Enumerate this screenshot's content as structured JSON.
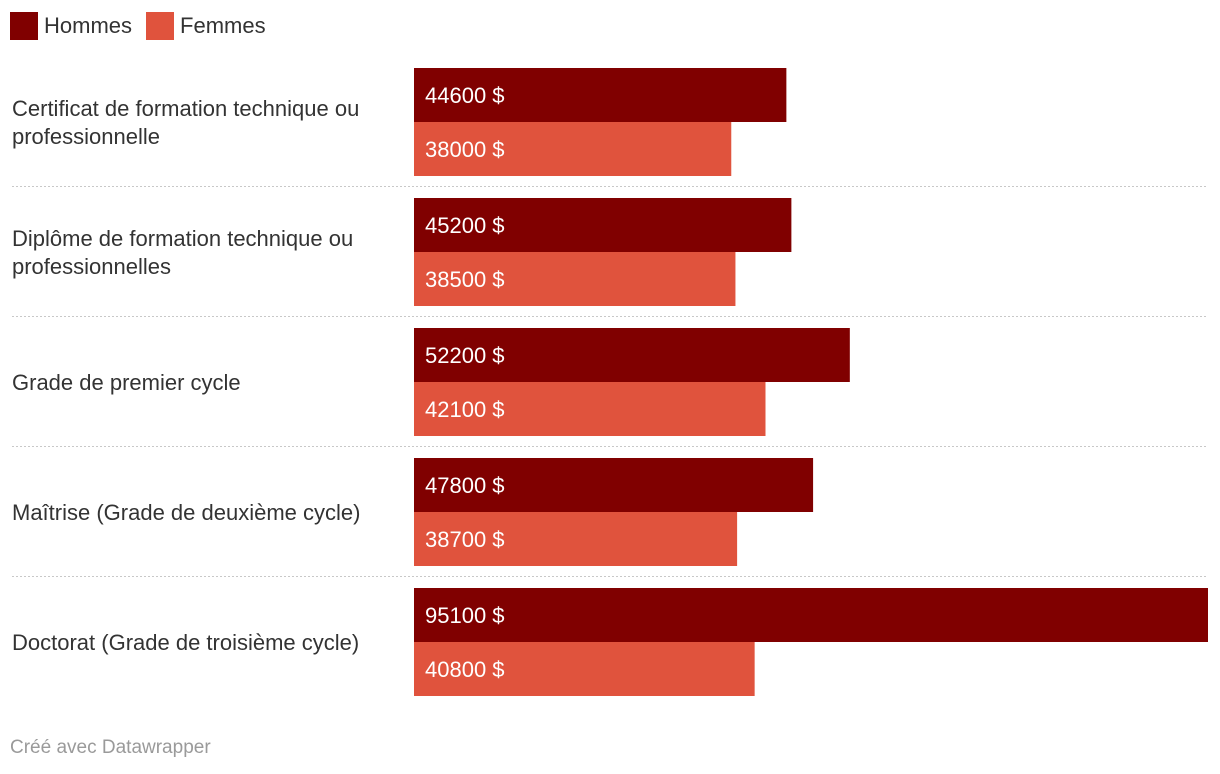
{
  "legend": [
    {
      "name": "Hommes",
      "color": "#800000"
    },
    {
      "name": "Femmes",
      "color": "#e0533d"
    }
  ],
  "chart_data": {
    "type": "bar",
    "orientation": "horizontal",
    "title": "",
    "xlabel": "",
    "ylabel": "",
    "categories": [
      "Certificat de formation technique ou professionnelle",
      "Diplôme de formation technique ou professionnelles",
      "Grade de premier cycle",
      "Maîtrise (Grade de deuxième cycle)",
      "Doctorat (Grade de troisième cycle)"
    ],
    "series": [
      {
        "name": "Hommes",
        "color": "#800000",
        "values": [
          44600,
          45200,
          52200,
          47800,
          95100
        ]
      },
      {
        "name": "Femmes",
        "color": "#e0533d",
        "values": [
          38000,
          38500,
          42100,
          38700,
          40800
        ]
      }
    ],
    "value_suffix": " $",
    "xlim": [
      0,
      95100
    ],
    "grid": false,
    "legend_position": "top-left"
  },
  "footer": {
    "text": "Créé avec Datawrapper"
  }
}
